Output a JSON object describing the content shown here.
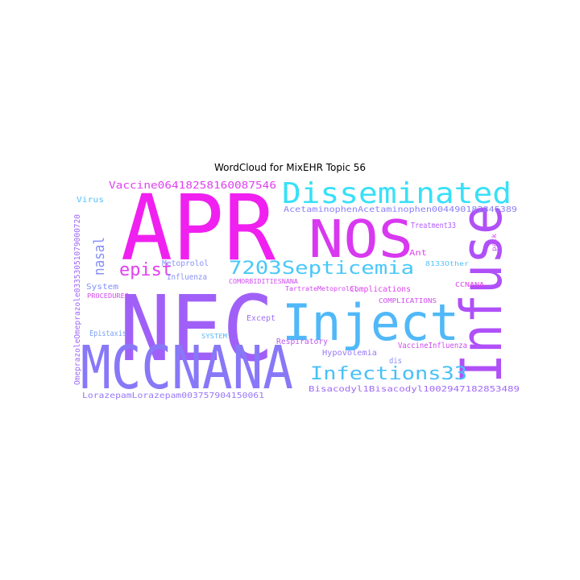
{
  "figure": {
    "title": "WordCloud for MixEHR Topic 56"
  },
  "palette": {
    "magenta": "#f020f0",
    "purple": "#a060f8",
    "violet": "#8878f8",
    "blue": "#50b0f8",
    "cyan": "#30e0f8",
    "pink": "#e040f0"
  },
  "words": [
    {
      "text": "APR",
      "color": "#f020f0"
    },
    {
      "text": "NEC",
      "color": "#a060f8"
    },
    {
      "text": "MCCNANA",
      "color": "#8878f8"
    },
    {
      "text": "Infuse",
      "color": "#b050f8"
    },
    {
      "text": "Inject",
      "color": "#50b8f8"
    },
    {
      "text": "NOS",
      "color": "#d838f0"
    },
    {
      "text": "Disseminated",
      "color": "#38e0f8"
    },
    {
      "text": "7203Septicemia",
      "color": "#48c8f8"
    },
    {
      "text": "Infections33",
      "color": "#48c0f8"
    },
    {
      "text": "epist",
      "color": "#e040f0"
    },
    {
      "text": "nasal",
      "color": "#8890f8"
    },
    {
      "text": "Vaccine064182581600875​46",
      "color": "#e040f0"
    },
    {
      "text": "AcetaminophenAcetaminophen004490182845389",
      "color": "#8a80f8"
    },
    {
      "text": "Bisacodyl1Bisacodyl1002947182853489",
      "color": "#a068f8"
    },
    {
      "text": "LorazepamLorazepam0037579041500​61",
      "color": "#9878f8"
    },
    {
      "text": "OmeprazoleOmeprazole0335305107900​0720",
      "color": "#a068f8"
    },
    {
      "text": "Metoprolol",
      "color": "#8890f8"
    },
    {
      "text": "Influenza",
      "color": "#8890f8"
    },
    {
      "text": "Virus",
      "color": "#58c0f8"
    },
    {
      "text": "System",
      "color": "#8090f8"
    },
    {
      "text": "PROCEDURES",
      "color": "#d048f0"
    },
    {
      "text": "Epistaxis",
      "color": "#7aa0f8"
    },
    {
      "text": "SYSTEM",
      "color": "#58b8f8"
    },
    {
      "text": "COMORBIDITIESNANA",
      "color": "#d050f0"
    },
    {
      "text": "TartrateMetoprolol",
      "color": "#d048f0"
    },
    {
      "text": "Except",
      "color": "#a070f8"
    },
    {
      "text": "Respiratory",
      "color": "#c058f0"
    },
    {
      "text": "Hypovolemia",
      "color": "#9a78f8"
    },
    {
      "text": "VaccineInfluenza",
      "color": "#d048f0"
    },
    {
      "text": "COMPLICATIONS",
      "color": "#d048f0"
    },
    {
      "text": "Complications",
      "color": "#e040f0"
    },
    {
      "text": "Treatment33",
      "color": "#b060f8"
    },
    {
      "text": "Ant",
      "color": "#e040f0"
    },
    {
      "text": "8133Other",
      "color": "#58c0f8"
    },
    {
      "text": "CCNANA",
      "color": "#e040f0"
    },
    {
      "text": "pack",
      "color": "#d048f0"
    },
    {
      "text": "dis",
      "color": "#8890f8"
    }
  ]
}
